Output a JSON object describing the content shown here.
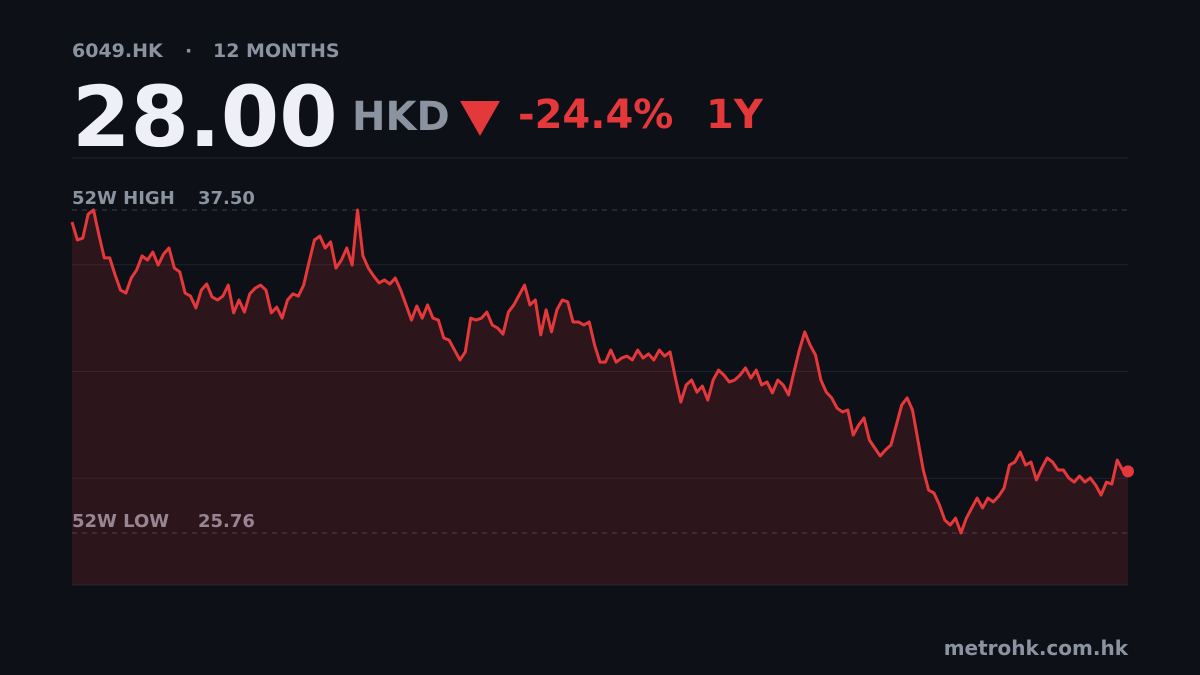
{
  "header": {
    "ticker": "6049.HK",
    "period": "12 MONTHS",
    "price": {
      "value": 28,
      "label": "28.00"
    },
    "currency": "HKD",
    "change": {
      "value": -24.4,
      "label": "-24.4%"
    },
    "range": "1Y"
  },
  "chart_data": {
    "type": "area",
    "color": "#e5383b",
    "ylim": [
      23.87,
      39.39
    ],
    "reference_lines": [
      {
        "label": "52W HIGH",
        "value": 37.5,
        "value_label": "37.50"
      },
      {
        "label": "52W LOW",
        "value": 25.76,
        "value_label": "25.76"
      }
    ],
    "values": [
      37.06,
      36.41,
      36.48,
      37.35,
      37.5,
      36.59,
      35.76,
      35.76,
      35.14,
      34.59,
      34.48,
      35.03,
      35.32,
      35.83,
      35.68,
      35.97,
      35.5,
      35.9,
      36.12,
      35.39,
      35.25,
      34.48,
      34.37,
      33.94,
      34.59,
      34.81,
      34.34,
      34.23,
      34.37,
      34.77,
      33.76,
      34.23,
      33.79,
      34.45,
      34.66,
      34.77,
      34.59,
      33.76,
      33.97,
      33.57,
      34.23,
      34.45,
      34.37,
      34.77,
      35.61,
      36.41,
      36.55,
      36.12,
      36.34,
      35.39,
      35.68,
      36.12,
      35.5,
      37.5,
      35.83,
      35.39,
      35.1,
      34.85,
      34.96,
      34.81,
      35.03,
      34.59,
      34.05,
      33.5,
      34.01,
      33.57,
      34.05,
      33.57,
      33.5,
      32.85,
      32.77,
      32.41,
      32.05,
      32.34,
      33.57,
      33.5,
      33.57,
      33.79,
      33.32,
      33.21,
      32.99,
      33.79,
      34.05,
      34.41,
      34.77,
      34.05,
      34.23,
      32.96,
      33.87,
      33.07,
      33.87,
      34.23,
      34.16,
      33.43,
      33.43,
      33.32,
      33.43,
      32.59,
      31.97,
      31.97,
      32.41,
      31.97,
      32.12,
      32.19,
      32.05,
      32.41,
      32.12,
      32.27,
      32.05,
      32.41,
      32.19,
      32.34,
      31.39,
      30.52,
      31.14,
      31.32,
      30.88,
      31.1,
      30.59,
      31.32,
      31.68,
      31.5,
      31.25,
      31.32,
      31.5,
      31.76,
      31.39,
      31.68,
      31.14,
      31.25,
      30.85,
      31.32,
      31.14,
      30.78,
      31.61,
      32.41,
      33.07,
      32.59,
      32.23,
      31.32,
      30.88,
      30.67,
      30.3,
      30.16,
      30.23,
      29.32,
      29.68,
      29.94,
      29.14,
      28.85,
      28.56,
      28.78,
      28.96,
      29.68,
      30.41,
      30.67,
      30.23,
      29.14,
      28.05,
      27.32,
      27.21,
      26.78,
      26.23,
      26.05,
      26.3,
      25.76,
      26.3,
      26.67,
      27.03,
      26.67,
      27.03,
      26.89,
      27.1,
      27.39,
      28.23,
      28.34,
      28.7,
      28.23,
      28.34,
      27.69,
      28.12,
      28.49,
      28.34,
      28.05,
      28.05,
      27.76,
      27.61,
      27.83,
      27.61,
      27.76,
      27.5,
      27.14,
      27.61,
      27.54,
      28.41,
      28.05,
      28
    ]
  },
  "footer": "metrohk.com.hk"
}
